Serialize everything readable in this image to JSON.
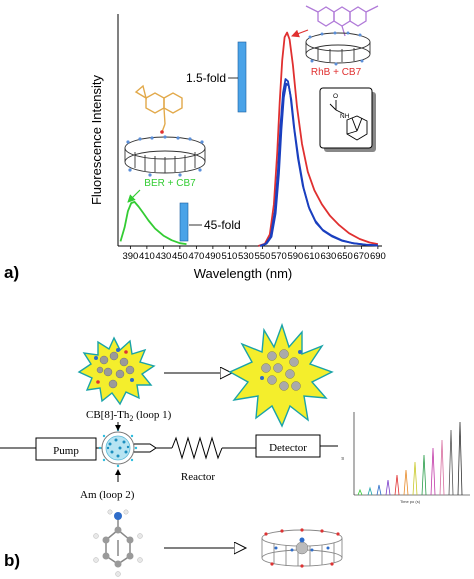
{
  "panel_a": {
    "label": "a)",
    "chart_data": {
      "type": "line",
      "xlabel": "Wavelength (nm)",
      "ylabel": "Fluorescence Intensity",
      "xlim": [
        375,
        695
      ],
      "ylim": [
        0,
        1.0
      ],
      "x_ticks": [
        390,
        410,
        430,
        450,
        470,
        490,
        510,
        530,
        550,
        570,
        590,
        610,
        630,
        650,
        670,
        690
      ],
      "series": [
        {
          "color": "#33cc33",
          "points": [
            [
              378,
              0.02
            ],
            [
              383,
              0.08
            ],
            [
              387,
              0.15
            ],
            [
              391,
              0.185
            ],
            [
              395,
              0.19
            ],
            [
              400,
              0.17
            ],
            [
              405,
              0.145
            ],
            [
              412,
              0.11
            ],
            [
              420,
              0.075
            ],
            [
              430,
              0.045
            ],
            [
              440,
              0.025
            ],
            [
              450,
              0.012
            ],
            [
              458,
              0.008
            ]
          ]
        },
        {
          "color": "#e03030",
          "points": [
            [
              545,
              0
            ],
            [
              553,
              0.01
            ],
            [
              559,
              0.05
            ],
            [
              564,
              0.18
            ],
            [
              568,
              0.4
            ],
            [
              571,
              0.62
            ],
            [
              574,
              0.8
            ],
            [
              577,
              0.9
            ],
            [
              580,
              0.92
            ],
            [
              583,
              0.89
            ],
            [
              587,
              0.78
            ],
            [
              592,
              0.6
            ],
            [
              598,
              0.44
            ],
            [
              605,
              0.32
            ],
            [
              613,
              0.24
            ],
            [
              622,
              0.18
            ],
            [
              632,
              0.13
            ],
            [
              643,
              0.09
            ],
            [
              655,
              0.055
            ],
            [
              668,
              0.03
            ],
            [
              680,
              0.015
            ],
            [
              690,
              0.008
            ]
          ]
        },
        {
          "color": "#1a3fbf",
          "points": [
            [
              547,
              0
            ],
            [
              554,
              0.01
            ],
            [
              560,
              0.04
            ],
            [
              565,
              0.15
            ],
            [
              569,
              0.33
            ],
            [
              572,
              0.52
            ],
            [
              575,
              0.66
            ],
            [
              578,
              0.72
            ],
            [
              581,
              0.71
            ],
            [
              584,
              0.65
            ],
            [
              588,
              0.52
            ],
            [
              593,
              0.38
            ],
            [
              599,
              0.26
            ],
            [
              606,
              0.17
            ],
            [
              614,
              0.11
            ],
            [
              623,
              0.07
            ],
            [
              634,
              0.045
            ],
            [
              646,
              0.025
            ],
            [
              660,
              0.012
            ],
            [
              675,
              0.006
            ],
            [
              690,
              0.003
            ]
          ]
        },
        {
          "color": "#1a3fbf",
          "points": [
            [
              548,
              0
            ],
            [
              555,
              0.01
            ],
            [
              561,
              0.04
            ],
            [
              566,
              0.14
            ],
            [
              570,
              0.31
            ],
            [
              573,
              0.5
            ],
            [
              576,
              0.64
            ],
            [
              579,
              0.7
            ],
            [
              582,
              0.69
            ],
            [
              585,
              0.63
            ],
            [
              589,
              0.5
            ],
            [
              594,
              0.37
            ],
            [
              600,
              0.25
            ],
            [
              607,
              0.16
            ],
            [
              615,
              0.1
            ],
            [
              624,
              0.065
            ],
            [
              635,
              0.04
            ],
            [
              647,
              0.022
            ],
            [
              661,
              0.011
            ],
            [
              676,
              0.005
            ],
            [
              690,
              0.002
            ]
          ]
        }
      ]
    },
    "annotations": {
      "fold_1": "1.5-fold",
      "fold_2": "45-fold",
      "label_ber": "BER + CB7",
      "label_rhb": "RhB + CB7"
    },
    "colors": {
      "green": "#33cc33",
      "red": "#e03030",
      "blue": "#1a3fbf",
      "indicator_bar": "#4aa3e8"
    }
  },
  "panel_b": {
    "label": "b)",
    "cb_label": "CB[8]-Th",
    "cb_sub": "2",
    "cb_loop": " (loop 1)",
    "am_label": "Am (loop 2)",
    "pump": "Pump",
    "reactor": "Reactor",
    "detector": "Detector",
    "mini_chart": {
      "xlabel": "Time po (s)",
      "ylabel": "I/I"
    }
  }
}
